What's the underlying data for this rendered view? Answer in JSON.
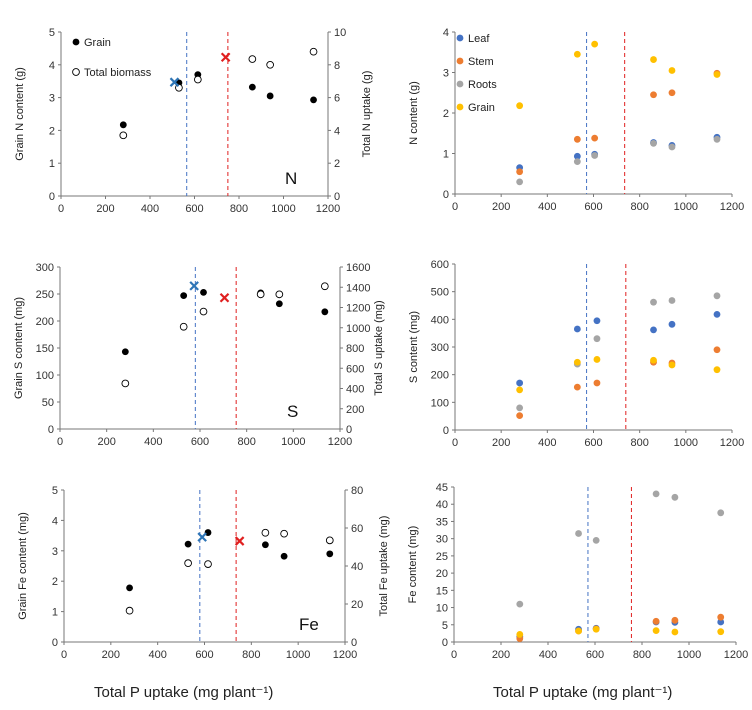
{
  "xlabel": "Total P uptake (mg plant⁻¹)",
  "colors": {
    "Leaf": "#4472C4",
    "Stem": "#ED7D31",
    "Roots": "#A5A5A5",
    "Grain": "#FFC000",
    "blue_marker": "#2E75B6",
    "red_marker": "#E02020"
  },
  "chart_data": [
    {
      "id": "n-left",
      "type": "scatter",
      "element": "N",
      "ylabel": "Grain N content (g)",
      "y2label": "Total N uptake (g)",
      "xlim": [
        0,
        1200
      ],
      "xticks": [
        0,
        200,
        400,
        600,
        800,
        1000,
        1200
      ],
      "ylim": [
        0,
        5
      ],
      "yticks": [
        0,
        1,
        2,
        3,
        4,
        5
      ],
      "y2lim": [
        0,
        10
      ],
      "y2ticks": [
        0,
        2,
        4,
        6,
        8,
        10
      ],
      "legend": [
        "Grain",
        "Total biomass"
      ],
      "series": [
        {
          "name": "Grain",
          "axis": "y",
          "marker": "filled",
          "x": [
            280,
            530,
            615,
            860,
            940,
            1135
          ],
          "y": [
            2.17,
            3.45,
            3.7,
            3.32,
            3.05,
            2.93
          ]
        },
        {
          "name": "Total biomass",
          "axis": "y2",
          "marker": "open",
          "x": [
            280,
            530,
            615,
            860,
            940,
            1135
          ],
          "y": [
            3.7,
            6.6,
            7.1,
            8.35,
            8.0,
            8.8
          ]
        }
      ],
      "markers": [
        {
          "symbol": "x",
          "color": "blue",
          "axis": "y",
          "x": 510,
          "y": 3.47
        },
        {
          "symbol": "x",
          "color": "red",
          "axis": "y",
          "x": 740,
          "y": 4.23
        }
      ],
      "vlines": [
        {
          "x": 565,
          "color": "blue"
        },
        {
          "x": 750,
          "color": "red"
        }
      ]
    },
    {
      "id": "n-right",
      "type": "scatter",
      "ylabel": "N content (g)",
      "xlim": [
        0,
        1200
      ],
      "xticks": [
        0,
        200,
        400,
        600,
        800,
        1000,
        1200
      ],
      "ylim": [
        0,
        4
      ],
      "yticks": [
        0,
        1,
        2,
        3,
        4
      ],
      "legend": [
        "Leaf",
        "Stem",
        "Roots",
        "Grain"
      ],
      "series": [
        {
          "name": "Leaf",
          "x": [
            280,
            530,
            605,
            860,
            940,
            1135
          ],
          "y": [
            0.65,
            0.93,
            0.98,
            1.27,
            1.2,
            1.4
          ]
        },
        {
          "name": "Stem",
          "x": [
            280,
            530,
            605,
            860,
            940,
            1135
          ],
          "y": [
            0.55,
            1.35,
            1.38,
            2.45,
            2.5,
            2.98
          ]
        },
        {
          "name": "Roots",
          "x": [
            280,
            530,
            605,
            860,
            940,
            1135
          ],
          "y": [
            0.3,
            0.8,
            0.95,
            1.25,
            1.16,
            1.35
          ]
        },
        {
          "name": "Grain",
          "x": [
            280,
            530,
            605,
            860,
            940,
            1135
          ],
          "y": [
            2.18,
            3.45,
            3.7,
            3.32,
            3.05,
            2.95
          ]
        }
      ],
      "vlines": [
        {
          "x": 570,
          "color": "blue"
        },
        {
          "x": 735,
          "color": "red"
        }
      ]
    },
    {
      "id": "s-left",
      "type": "scatter",
      "element": "S",
      "ylabel": "Grain S content (mg)",
      "y2label": "Total S uptake (mg)",
      "xlim": [
        0,
        1200
      ],
      "xticks": [
        0,
        200,
        400,
        600,
        800,
        1000,
        1200
      ],
      "ylim": [
        0,
        300
      ],
      "yticks": [
        0,
        50,
        100,
        150,
        200,
        250,
        300
      ],
      "y2lim": [
        0,
        1600
      ],
      "y2ticks": [
        0,
        200,
        400,
        600,
        800,
        1000,
        1200,
        1400,
        1600
      ],
      "series": [
        {
          "name": "Grain",
          "axis": "y",
          "marker": "filled",
          "x": [
            280,
            530,
            615,
            860,
            940,
            1135
          ],
          "y": [
            143,
            247,
            253,
            252,
            232,
            217
          ]
        },
        {
          "name": "Total biomass",
          "axis": "y2",
          "marker": "open",
          "x": [
            280,
            530,
            615,
            860,
            940,
            1135
          ],
          "y": [
            450,
            1010,
            1160,
            1330,
            1330,
            1410
          ]
        }
      ],
      "markers": [
        {
          "symbol": "x",
          "color": "blue",
          "axis": "y",
          "x": 575,
          "y": 265
        },
        {
          "symbol": "x",
          "color": "red",
          "axis": "y",
          "x": 705,
          "y": 243
        }
      ],
      "vlines": [
        {
          "x": 580,
          "color": "blue"
        },
        {
          "x": 755,
          "color": "red"
        }
      ]
    },
    {
      "id": "s-right",
      "type": "scatter",
      "ylabel": "S content (mg)",
      "xlim": [
        0,
        1200
      ],
      "xticks": [
        0,
        200,
        400,
        600,
        800,
        1000,
        1200
      ],
      "ylim": [
        0,
        600
      ],
      "yticks": [
        0,
        100,
        200,
        300,
        400,
        500,
        600
      ],
      "series": [
        {
          "name": "Leaf",
          "x": [
            280,
            530,
            615,
            860,
            940,
            1135
          ],
          "y": [
            170,
            365,
            395,
            362,
            382,
            418
          ]
        },
        {
          "name": "Stem",
          "x": [
            280,
            530,
            615,
            860,
            940,
            1135
          ],
          "y": [
            52,
            155,
            170,
            245,
            242,
            290
          ]
        },
        {
          "name": "Roots",
          "x": [
            280,
            530,
            615,
            860,
            940,
            1135
          ],
          "y": [
            80,
            238,
            330,
            462,
            468,
            485
          ]
        },
        {
          "name": "Grain",
          "x": [
            280,
            530,
            615,
            860,
            940,
            1135
          ],
          "y": [
            145,
            245,
            255,
            252,
            235,
            218
          ]
        }
      ],
      "vlines": [
        {
          "x": 570,
          "color": "blue"
        },
        {
          "x": 740,
          "color": "red"
        }
      ]
    },
    {
      "id": "fe-left",
      "type": "scatter",
      "element": "Fe",
      "ylabel": "Grain Fe content (mg)",
      "y2label": "Total Fe uptake (mg)",
      "xlim": [
        0,
        1200
      ],
      "xticks": [
        0,
        200,
        400,
        600,
        800,
        1000,
        1200
      ],
      "ylim": [
        0,
        5
      ],
      "yticks": [
        0,
        1,
        2,
        3,
        4,
        5
      ],
      "y2lim": [
        0,
        80
      ],
      "y2ticks": [
        0,
        20,
        40,
        60,
        80
      ],
      "series": [
        {
          "name": "Grain",
          "axis": "y",
          "marker": "filled",
          "x": [
            280,
            530,
            615,
            860,
            940,
            1135
          ],
          "y": [
            1.78,
            3.22,
            3.6,
            3.2,
            2.82,
            2.9
          ]
        },
        {
          "name": "Total biomass",
          "axis": "y2",
          "marker": "open",
          "x": [
            280,
            530,
            615,
            860,
            940,
            1135
          ],
          "y": [
            16.5,
            41.5,
            41.0,
            57.5,
            57.0,
            53.5
          ]
        }
      ],
      "markers": [
        {
          "symbol": "x",
          "color": "blue",
          "axis": "y",
          "x": 590,
          "y": 3.45
        },
        {
          "symbol": "x",
          "color": "red",
          "axis": "y",
          "x": 750,
          "y": 3.32
        }
      ],
      "vlines": [
        {
          "x": 580,
          "color": "blue"
        },
        {
          "x": 735,
          "color": "red"
        }
      ]
    },
    {
      "id": "fe-right",
      "type": "scatter",
      "ylabel": "Fe content (mg)",
      "xlim": [
        0,
        1200
      ],
      "xticks": [
        0,
        200,
        400,
        600,
        800,
        1000,
        1200
      ],
      "ylim": [
        0,
        45
      ],
      "yticks": [
        0,
        5,
        10,
        15,
        20,
        25,
        30,
        35,
        40,
        45
      ],
      "series": [
        {
          "name": "Leaf",
          "x": [
            280,
            530,
            605,
            860,
            940,
            1135
          ],
          "y": [
            1.5,
            3.7,
            4.0,
            5.8,
            5.7,
            5.8
          ]
        },
        {
          "name": "Stem",
          "x": [
            280,
            530,
            605,
            860,
            940,
            1135
          ],
          "y": [
            1.0,
            3.2,
            3.8,
            6.0,
            6.3,
            7.2
          ]
        },
        {
          "name": "Roots",
          "x": [
            280,
            530,
            605,
            860,
            940,
            1135
          ],
          "y": [
            11.0,
            31.5,
            29.5,
            43.0,
            42.0,
            37.5
          ]
        },
        {
          "name": "Grain",
          "x": [
            280,
            530,
            605,
            860,
            940,
            1135
          ],
          "y": [
            2.2,
            3.2,
            3.7,
            3.3,
            2.9,
            3.0
          ]
        }
      ],
      "vlines": [
        {
          "x": 570,
          "color": "blue"
        },
        {
          "x": 755,
          "color": "red"
        }
      ]
    }
  ]
}
